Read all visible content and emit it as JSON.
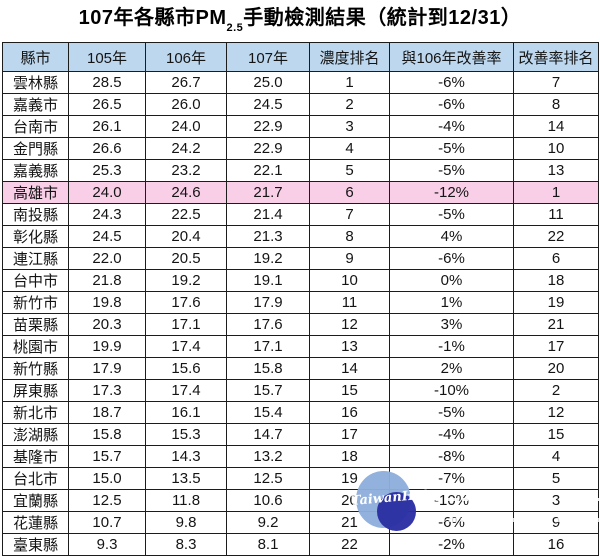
{
  "title": {
    "prefix": "107年各縣市PM",
    "subscript": "2.5",
    "suffix": "手動檢測結果（統計到12/31）"
  },
  "watermark": {
    "logo_text": "TaiwanHot"
  },
  "colors": {
    "header_bg": "#BDD7EE",
    "highlight_bg": "#F9CFE8",
    "border": "#1C1C1C",
    "logo_light": "#8FAEDC",
    "logo_dark": "#2B2FA3"
  },
  "chart_data": {
    "type": "table",
    "title": "107年各縣市PM2.5手動檢測結果（統計到12/31）",
    "columns": [
      "縣市",
      "105年",
      "106年",
      "107年",
      "濃度排名",
      "與106年改善率",
      "改善率排名"
    ],
    "column_keys": [
      "county",
      "y105",
      "y106",
      "y107",
      "concentration-rank",
      "improvement-rate",
      "improvement-rank"
    ],
    "highlight_row_index": 5,
    "highlight_row_county": "高雄市",
    "rows": [
      [
        "雲林縣",
        "28.5",
        "26.7",
        "25.0",
        "1",
        "-6%",
        "7"
      ],
      [
        "嘉義市",
        "26.5",
        "26.0",
        "24.5",
        "2",
        "-6%",
        "8"
      ],
      [
        "台南市",
        "26.1",
        "24.0",
        "22.9",
        "3",
        "-4%",
        "14"
      ],
      [
        "金門縣",
        "26.6",
        "24.2",
        "22.9",
        "4",
        "-5%",
        "10"
      ],
      [
        "嘉義縣",
        "25.3",
        "23.2",
        "22.1",
        "5",
        "-5%",
        "13"
      ],
      [
        "高雄市",
        "24.0",
        "24.6",
        "21.7",
        "6",
        "-12%",
        "1"
      ],
      [
        "南投縣",
        "24.3",
        "22.5",
        "21.4",
        "7",
        "-5%",
        "11"
      ],
      [
        "彰化縣",
        "24.5",
        "20.4",
        "21.3",
        "8",
        "4%",
        "22"
      ],
      [
        "連江縣",
        "22.0",
        "20.5",
        "19.2",
        "9",
        "-6%",
        "6"
      ],
      [
        "台中市",
        "21.8",
        "19.2",
        "19.1",
        "10",
        "0%",
        "18"
      ],
      [
        "新竹市",
        "19.8",
        "17.6",
        "17.9",
        "11",
        "1%",
        "19"
      ],
      [
        "苗栗縣",
        "20.3",
        "17.1",
        "17.6",
        "12",
        "3%",
        "21"
      ],
      [
        "桃園市",
        "19.9",
        "17.4",
        "17.1",
        "13",
        "-1%",
        "17"
      ],
      [
        "新竹縣",
        "17.9",
        "15.6",
        "15.8",
        "14",
        "2%",
        "20"
      ],
      [
        "屏東縣",
        "17.3",
        "17.4",
        "15.7",
        "15",
        "-10%",
        "2"
      ],
      [
        "新北市",
        "18.7",
        "16.1",
        "15.4",
        "16",
        "-5%",
        "12"
      ],
      [
        "澎湖縣",
        "15.8",
        "15.3",
        "14.7",
        "17",
        "-4%",
        "15"
      ],
      [
        "基隆市",
        "15.7",
        "14.3",
        "13.2",
        "18",
        "-8%",
        "4"
      ],
      [
        "台北市",
        "15.0",
        "13.5",
        "12.5",
        "19",
        "-7%",
        "5"
      ],
      [
        "宜蘭縣",
        "12.5",
        "11.8",
        "10.6",
        "20",
        "-10%",
        "3"
      ],
      [
        "花蓮縣",
        "10.7",
        "9.8",
        "9.2",
        "21",
        "-6%",
        "9"
      ],
      [
        "臺東縣",
        "9.3",
        "8.3",
        "8.1",
        "22",
        "-2%",
        "16"
      ]
    ]
  }
}
